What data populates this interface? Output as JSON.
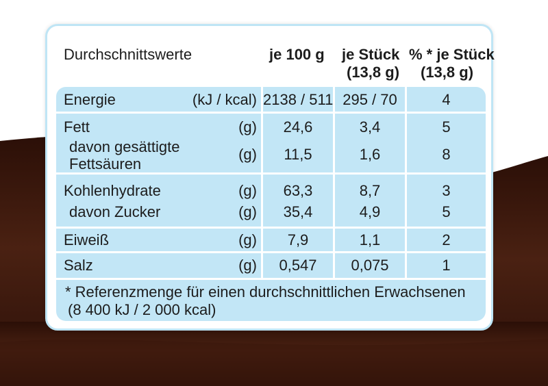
{
  "header": {
    "label": "Durchschnittswerte",
    "col1": "je 100 g",
    "col2_line1": "je Stück",
    "col2_line2": "(13,8 g)",
    "col3_line1": "% * je Stück",
    "col3_line2": "(13,8 g)"
  },
  "rows": [
    {
      "name": "Energie",
      "unit": "(kJ / kcal)",
      "per100": "2138 / 511",
      "perPiece": "295 / 70",
      "percent": "4"
    },
    {
      "name": "Fett",
      "unit": "(g)",
      "per100": "24,6",
      "perPiece": "3,4",
      "percent": "5"
    },
    {
      "name_line1": "davon gesättigte",
      "name_line2": "Fettsäuren",
      "unit": "(g)",
      "per100": "11,5",
      "perPiece": "1,6",
      "percent": "8"
    },
    {
      "name": "Kohlenhydrate",
      "unit": "(g)",
      "per100": "63,3",
      "perPiece": "8,7",
      "percent": "3"
    },
    {
      "name": "davon Zucker",
      "unit": "(g)",
      "per100": "35,4",
      "perPiece": "4,9",
      "percent": "5"
    },
    {
      "name": "Eiweiß",
      "unit": "(g)",
      "per100": "7,9",
      "perPiece": "1,1",
      "percent": "2"
    },
    {
      "name": "Salz",
      "unit": "(g)",
      "per100": "0,547",
      "perPiece": "0,075",
      "percent": "1"
    }
  ],
  "footnote": {
    "line1": "* Referenzmenge für einen durchschnittlichen Erwachsenen",
    "line2": "(8 400 kJ / 2 000 kcal)"
  },
  "colors": {
    "band": "#c2e6f6",
    "border": "#bfe5f5",
    "chocolate": "#3a160c"
  }
}
